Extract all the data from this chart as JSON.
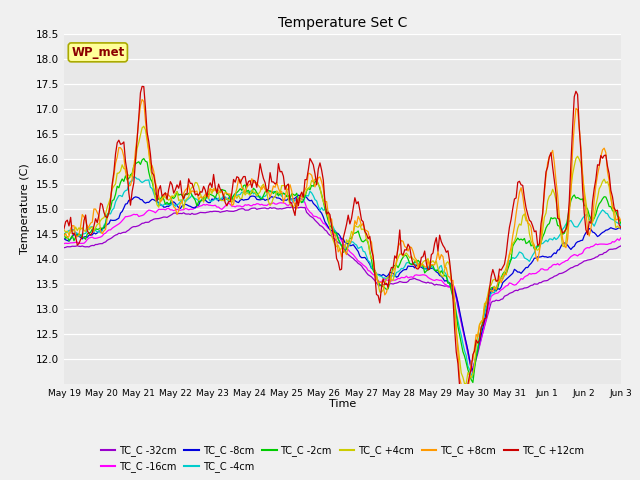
{
  "title": "Temperature Set C",
  "xlabel": "Time",
  "ylabel": "Temperature (C)",
  "ylim": [
    11.5,
    18.5
  ],
  "yticks": [
    12.0,
    12.5,
    13.0,
    13.5,
    14.0,
    14.5,
    15.0,
    15.5,
    16.0,
    16.5,
    17.0,
    17.5,
    18.0,
    18.5
  ],
  "xtick_labels": [
    "May 19",
    "May 20",
    "May 21",
    "May 22",
    "May 23",
    "May 24",
    "May 25",
    "May 26",
    "May 27",
    "May 28",
    "May 29",
    "May 30",
    "May 31",
    "Jun 1",
    "Jun 2",
    "Jun 3"
  ],
  "series_labels": [
    "TC_C -32cm",
    "TC_C -16cm",
    "TC_C -8cm",
    "TC_C -4cm",
    "TC_C -2cm",
    "TC_C +4cm",
    "TC_C +8cm",
    "TC_C +12cm"
  ],
  "series_colors": [
    "#9900cc",
    "#ff00ff",
    "#0000dd",
    "#00cccc",
    "#00cc00",
    "#cccc00",
    "#ff9900",
    "#cc0000"
  ],
  "bg_color": "#e8e8e8",
  "fig_color": "#f0f0f0",
  "n_points": 336
}
